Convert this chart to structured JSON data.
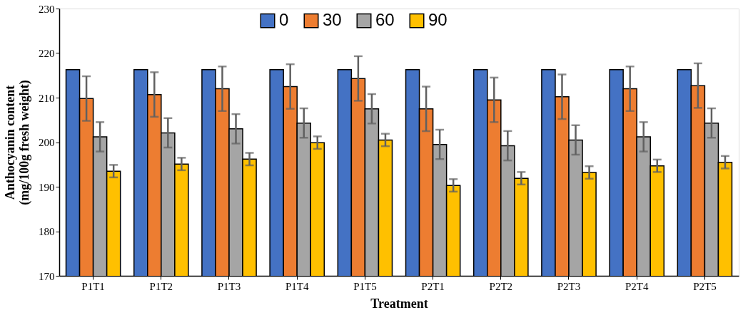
{
  "chart_data": {
    "type": "bar",
    "xlabel": "Treatment",
    "ylabel": "Anthocyanin content (mg/100g fresh weight)",
    "categories": [
      "P1T1",
      "P1T2",
      "P1T3",
      "P1T4",
      "P1T5",
      "P2T1",
      "P2T2",
      "P2T3",
      "P2T4",
      "P2T5"
    ],
    "ylim": [
      170,
      230
    ],
    "yticks": [
      170,
      180,
      190,
      200,
      210,
      220,
      230
    ],
    "grid": false,
    "legend": "top",
    "series": [
      {
        "name": "0",
        "color": "#4472c4",
        "values": [
          216.3,
          216.3,
          216.3,
          216.3,
          216.3,
          216.3,
          216.3,
          216.3,
          216.3,
          216.3
        ]
      },
      {
        "name": "30",
        "color": "#ed7d31",
        "values": [
          209.8,
          210.7,
          212.0,
          212.5,
          214.3,
          207.5,
          209.5,
          210.2,
          212.0,
          212.7
        ],
        "errors": [
          5,
          5,
          5,
          5,
          5,
          5,
          5,
          5,
          5,
          5
        ]
      },
      {
        "name": "60",
        "color": "#a5a5a5",
        "values": [
          201.2,
          202.1,
          203.0,
          204.3,
          207.5,
          199.5,
          199.2,
          200.5,
          201.2,
          204.3
        ],
        "errors": [
          3.3,
          3.3,
          3.3,
          3.3,
          3.3,
          3.3,
          3.3,
          3.3,
          3.3,
          3.3
        ]
      },
      {
        "name": "90",
        "color": "#ffc000",
        "values": [
          193.5,
          195.1,
          196.2,
          199.9,
          200.5,
          190.3,
          191.9,
          193.2,
          194.7,
          195.5
        ],
        "errors": [
          1.4,
          1.4,
          1.4,
          1.4,
          1.4,
          1.4,
          1.4,
          1.4,
          1.4,
          1.4
        ]
      }
    ]
  }
}
